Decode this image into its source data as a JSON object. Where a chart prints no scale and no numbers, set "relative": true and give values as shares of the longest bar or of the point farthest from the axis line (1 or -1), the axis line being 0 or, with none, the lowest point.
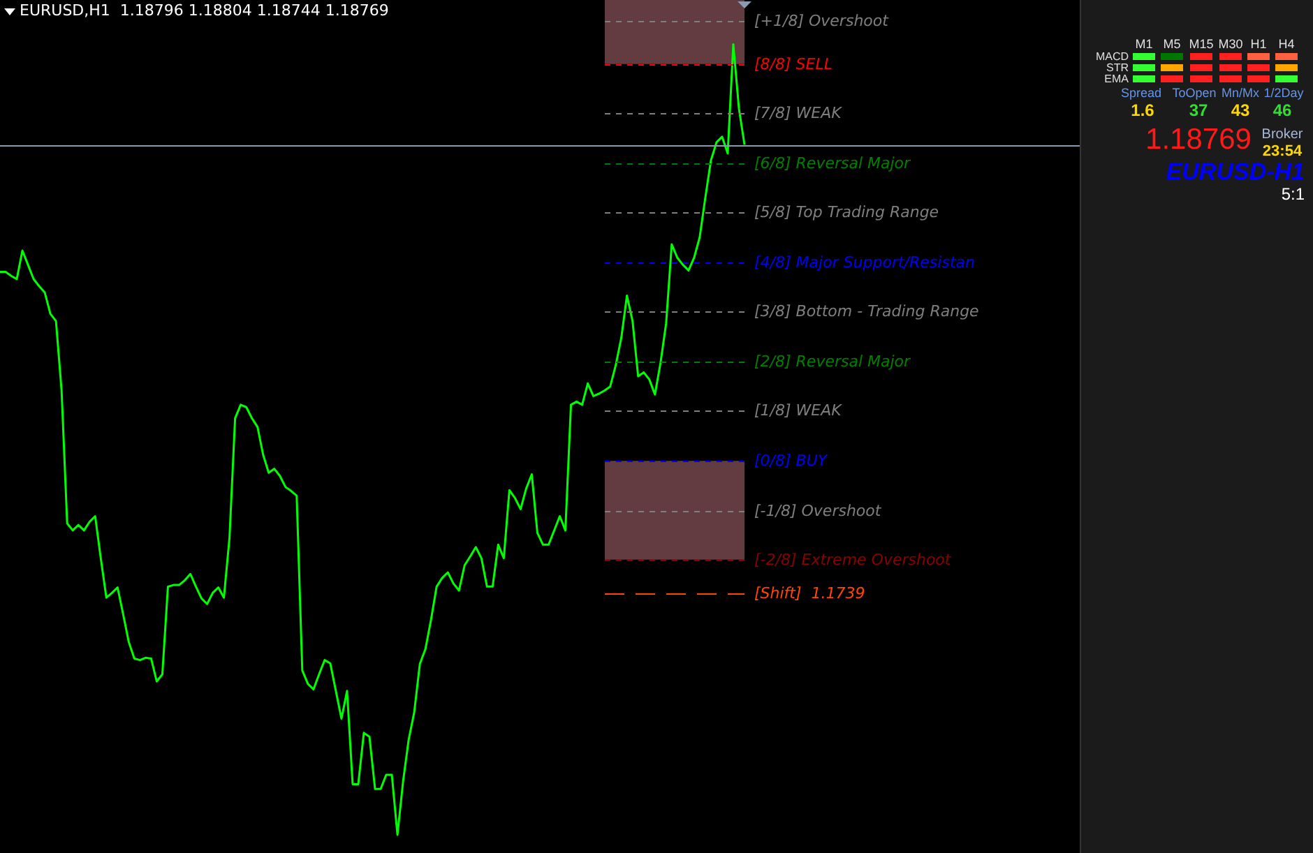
{
  "chart_data": [
    {
      "type": "line",
      "title": "EURUSD,H1  1.18796 1.18804 1.18744 1.18769",
      "relative": true,
      "legend": false,
      "categories": [
        null,
        null,
        null,
        null,
        null,
        null,
        null,
        null,
        null,
        null,
        null,
        null,
        null,
        null,
        null,
        null,
        null,
        null,
        null,
        null,
        null,
        null,
        null,
        null,
        null,
        null,
        null,
        null,
        null,
        null,
        null,
        null,
        null,
        null,
        null,
        null,
        null,
        null,
        null,
        null,
        null,
        null,
        null,
        null,
        null,
        null,
        null,
        null,
        null,
        null,
        null,
        null,
        null,
        null,
        null,
        null,
        null,
        null,
        null,
        null,
        null,
        null,
        null,
        null,
        null,
        null,
        null,
        null,
        null,
        null,
        null,
        null,
        null,
        null,
        null,
        null,
        null,
        null,
        null,
        null,
        null,
        null,
        null,
        null,
        null,
        null,
        null,
        null,
        null,
        null,
        null,
        null,
        null,
        null,
        null,
        null,
        null,
        null,
        null,
        null,
        null,
        null,
        null,
        null,
        null,
        null,
        null,
        null,
        null,
        null,
        null,
        null,
        null,
        null,
        null,
        null,
        null,
        null,
        null,
        null,
        null,
        null,
        null,
        null,
        null,
        null,
        null,
        null,
        null,
        null,
        null,
        null,
        null,
        null
      ],
      "series": [
        {
          "color": "#00ff00",
          "values": [
            0.712,
            0.712,
            0.707,
            0.703,
            0.739,
            0.721,
            0.703,
            0.694,
            0.686,
            0.659,
            0.65,
            0.562,
            0.394,
            0.385,
            0.392,
            0.385,
            0.396,
            0.403,
            0.35,
            0.3,
            0.306,
            0.313,
            0.279,
            0.244,
            0.223,
            0.221,
            0.224,
            0.223,
            0.194,
            0.203,
            0.314,
            0.316,
            0.316,
            0.322,
            0.33,
            0.314,
            0.299,
            0.292,
            0.306,
            0.313,
            0.3,
            0.376,
            0.527,
            0.544,
            0.541,
            0.527,
            0.516,
            0.481,
            0.458,
            0.463,
            0.454,
            0.44,
            0.435,
            0.429,
            0.208,
            0.191,
            0.184,
            0.203,
            0.221,
            0.217,
            0.182,
            0.147,
            0.182,
            0.064,
            0.064,
            0.129,
            0.124,
            0.058,
            0.058,
            0.076,
            0.076,
            0,
            0.067,
            0.12,
            0.155,
            0.216,
            0.235,
            0.272,
            0.314,
            0.325,
            0.332,
            0.318,
            0.309,
            0.341,
            0.352,
            0.364,
            0.35,
            0.314,
            0.314,
            0.367,
            0.35,
            0.436,
            0.426,
            0.412,
            0.438,
            0.456,
            0.382,
            0.367,
            0.367,
            0.385,
            0.403,
            0.385,
            0.544,
            0.548,
            0.544,
            0.571,
            0.555,
            0.558,
            0.562,
            0.567,
            0.594,
            0.629,
            0.682,
            0.65,
            0.58,
            0.585,
            0.576,
            0.557,
            0.597,
            0.647,
            0.747,
            0.73,
            0.721,
            0.714,
            0.73,
            0.756,
            0.806,
            0.853,
            0.876,
            0.883,
            0.862,
            1,
            0.919,
            0.873
          ]
        }
      ],
      "bands": [
        {
          "axis": "y",
          "from": 0.975,
          "to": 1.056,
          "color": "#633c42"
        },
        {
          "axis": "y",
          "from": 0.348,
          "to": 0.473,
          "color": "#633c42"
        }
      ],
      "ref_lines": [
        {
          "axis": "y",
          "value": 1.03,
          "label": "[+1/8] Overshoot",
          "color": "#7f7f7f",
          "line_style": "dashed"
        },
        {
          "axis": "y",
          "value": 0.975,
          "label": "[8/8] SELL",
          "color": "#ff0000",
          "line_style": "dashed"
        },
        {
          "axis": "y",
          "value": 0.913,
          "label": "[7/8] WEAK",
          "color": "#7f7f7f",
          "line_style": "dashed"
        },
        {
          "axis": "y",
          "value": 0.85,
          "label": "[6/8] Reversal Major",
          "color": "#008000",
          "line_style": "dashed"
        },
        {
          "axis": "y",
          "value": 0.788,
          "label": "[5/8] Top Trading Range",
          "color": "#7f7f7f",
          "line_style": "dashed"
        },
        {
          "axis": "y",
          "value": 0.724,
          "label": "[4/8] Major Support/Resistan",
          "color": "#0000ff",
          "line_style": "dashed"
        },
        {
          "axis": "y",
          "value": 0.663,
          "label": "[3/8] Bottom - Trading Range",
          "color": "#7f7f7f",
          "line_style": "dashed"
        },
        {
          "axis": "y",
          "value": 0.599,
          "label": "[2/8] Reversal Major",
          "color": "#008000",
          "line_style": "dashed"
        },
        {
          "axis": "y",
          "value": 0.537,
          "label": "[1/8] WEAK",
          "color": "#7f7f7f",
          "line_style": "dashed"
        },
        {
          "axis": "y",
          "value": 0.473,
          "label": "[0/8] BUY",
          "color": "#0000ff",
          "line_style": "dashed"
        },
        {
          "axis": "y",
          "value": 0.41,
          "label": "[-1/8] Overshoot",
          "color": "#7f7f7f",
          "line_style": "dashed"
        },
        {
          "axis": "y",
          "value": 0.348,
          "label": "[-2/8] Extreme Overshoot",
          "color": "#8b0000",
          "line_style": "dashed"
        },
        {
          "axis": "y",
          "value": 0.306,
          "label": "[Shift]  1.1739",
          "color": "#ff4500",
          "line_style": "dashed"
        },
        {
          "axis": "y",
          "value": 0.873,
          "color": "#8a9bb0",
          "line_style": "solid"
        }
      ]
    },
    {
      "type": "other",
      "annotations": [
        "M1",
        "M5",
        "M15",
        "M30",
        "H1",
        "H4",
        "MACD",
        "STR",
        "EMA",
        "Spread",
        "ToOpen",
        "Mn/Mx",
        "1/2Day",
        "1.6",
        "37",
        "43",
        "46",
        "1.18769",
        "Broker",
        "23:54",
        "EURUSD-H1",
        "5:1"
      ]
    }
  ]
}
